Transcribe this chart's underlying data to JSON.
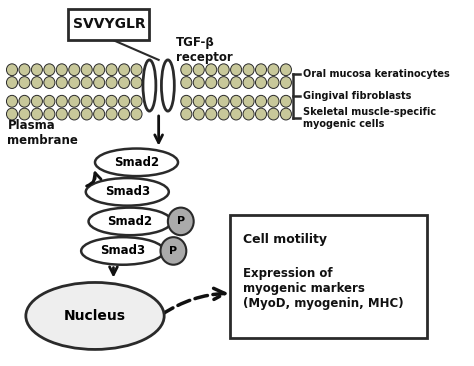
{
  "bg_color": "#ffffff",
  "membrane_color": "#c8c89a",
  "membrane_border": "#2a2a2a",
  "smad_fill": "#ffffff",
  "smad_border": "#2a2a2a",
  "p_fill": "#aaaaaa",
  "nucleus_fill": "#eeeeee",
  "box_fill": "#ffffff",
  "arrow_color": "#111111",
  "text_color": "#111111",
  "svvyglr_label": "SVVYGLR",
  "tgf_label": "TGF-β\nreceptor",
  "plasma_label": "Plasma\nmembrane",
  "smad2_label": "Smad2",
  "smad3_label": "Smad3",
  "p_label": "P",
  "nucleus_label": "Nucleus",
  "cell_motility_label": "Cell motility",
  "expression_label": "Expression of\nmyogenic markers\n(MyoD, myogenin, MHC)",
  "cell_types": [
    "Oral mucosa keratinocytes",
    "Gingival fibroblasts",
    "Skeletal muscle-specific\nmyogenic cells"
  ]
}
